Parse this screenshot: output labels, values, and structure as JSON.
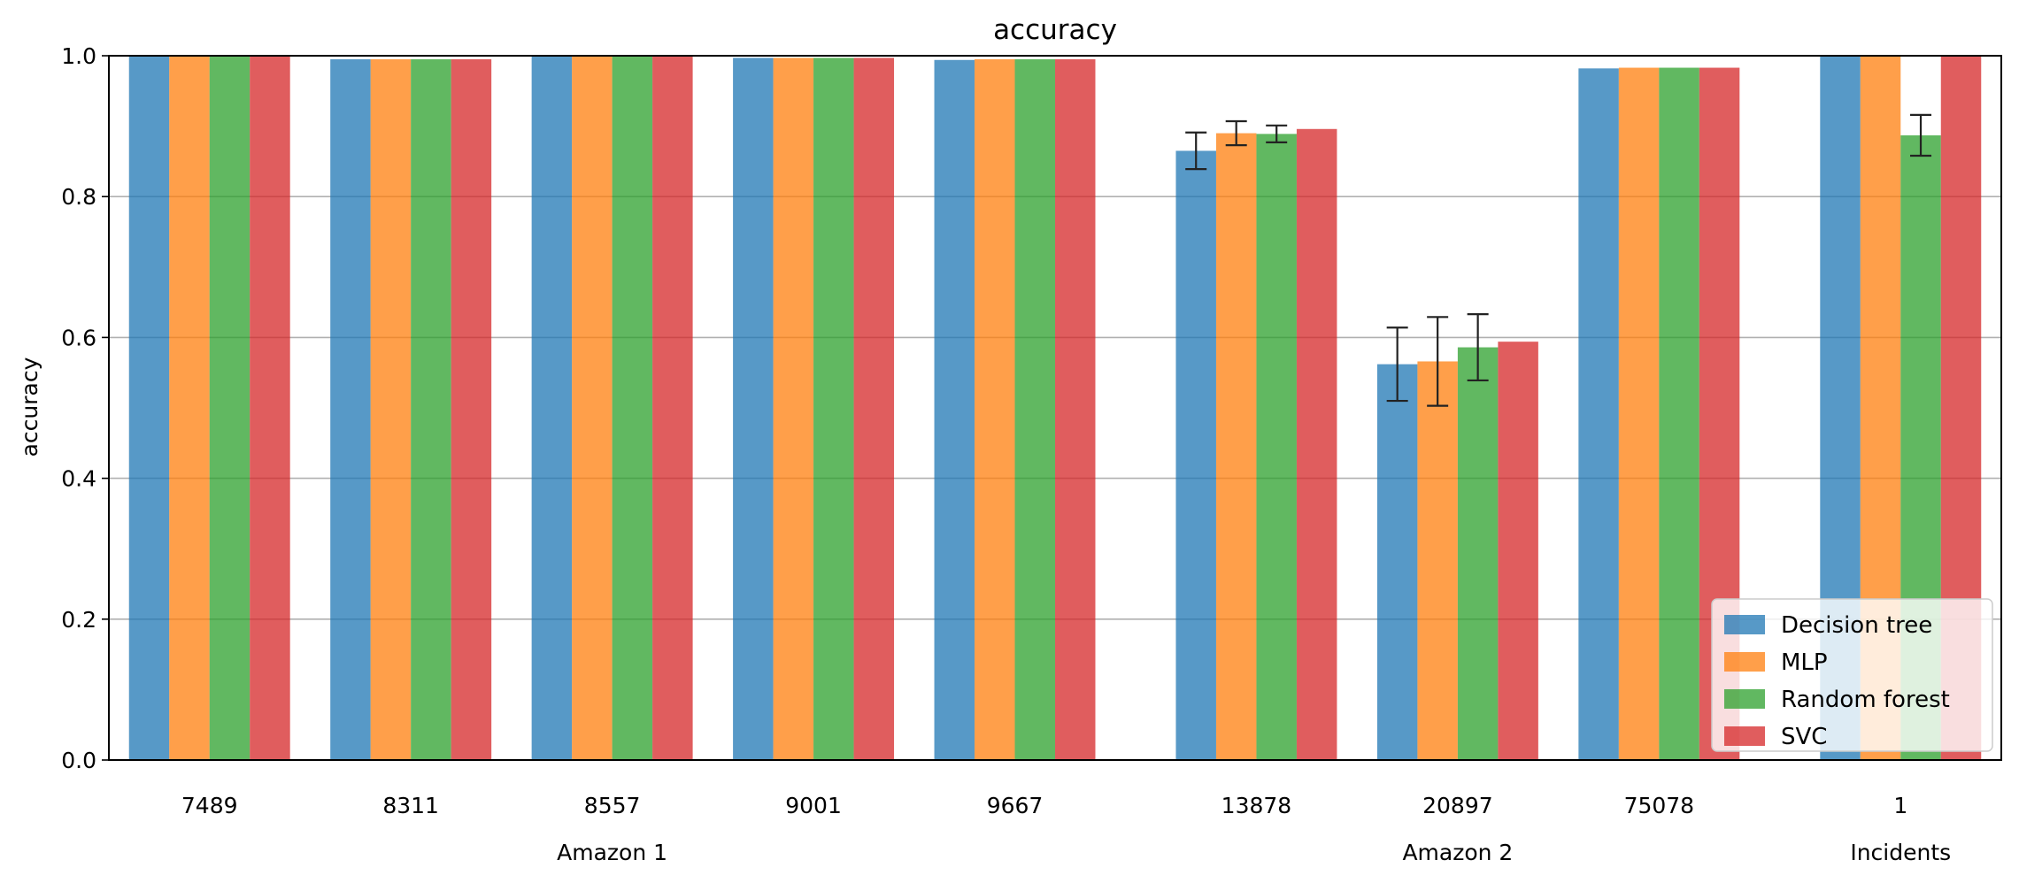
{
  "chart_data": {
    "type": "bar",
    "title": "accuracy",
    "ylabel": "accuracy",
    "xlabel": "",
    "ylim": [
      0,
      1.0
    ],
    "yticks": [
      "0.0",
      "0.2",
      "0.4",
      "0.6",
      "0.8",
      "1.0"
    ],
    "grid": "horizontal",
    "legend_position": "bottom-right",
    "categories": [
      "7489",
      "8311",
      "8557",
      "9001",
      "9667",
      "13878",
      "20897",
      "75078",
      "1"
    ],
    "groups": [
      {
        "label": "Amazon 1",
        "categories": [
          "7489",
          "8311",
          "8557",
          "9001",
          "9667"
        ]
      },
      {
        "label": "Amazon 2",
        "categories": [
          "13878",
          "20897",
          "75078"
        ]
      },
      {
        "label": "Incidents",
        "categories": [
          "1"
        ]
      }
    ],
    "series": [
      {
        "name": "Decision tree",
        "color": "#1f77b4",
        "values": [
          1.0,
          0.995,
          1.0,
          0.997,
          0.994,
          0.865,
          0.562,
          0.982,
          1.0
        ],
        "errors": [
          null,
          null,
          null,
          null,
          null,
          0.026,
          0.052,
          null,
          null
        ]
      },
      {
        "name": "MLP",
        "color": "#ff7f0e",
        "values": [
          1.0,
          0.995,
          1.0,
          0.997,
          0.995,
          0.89,
          0.566,
          0.983,
          1.0
        ],
        "errors": [
          null,
          null,
          null,
          null,
          null,
          0.017,
          0.063,
          null,
          null
        ]
      },
      {
        "name": "Random forest",
        "color": "#2ca02c",
        "values": [
          1.0,
          0.995,
          1.0,
          0.997,
          0.995,
          0.889,
          0.586,
          0.983,
          0.887
        ],
        "errors": [
          null,
          null,
          null,
          null,
          null,
          0.012,
          0.047,
          null,
          0.029
        ]
      },
      {
        "name": "SVC",
        "color": "#d62728",
        "values": [
          1.0,
          0.995,
          1.0,
          0.997,
          0.995,
          0.896,
          0.594,
          0.983,
          1.0
        ],
        "errors": [
          null,
          null,
          null,
          null,
          null,
          null,
          null,
          null,
          null
        ]
      }
    ]
  }
}
